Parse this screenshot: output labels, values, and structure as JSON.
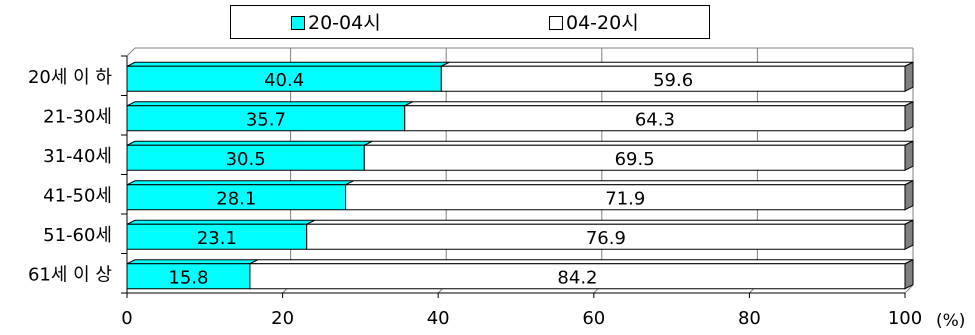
{
  "chart_data": {
    "type": "bar",
    "orientation": "horizontal",
    "stacked": true,
    "percent_stacked": true,
    "categories": [
      "20세 이 하",
      "21-30세",
      "31-40세",
      "41-50세",
      "51-60세",
      "61세 이 상"
    ],
    "series": [
      {
        "name": "20-04시",
        "values": [
          40.4,
          35.7,
          30.5,
          28.1,
          23.1,
          15.8
        ],
        "labels": [
          "40.4",
          "35.7",
          "30.5",
          "28.1",
          "23.1",
          "15.8"
        ]
      },
      {
        "name": "04-20시",
        "values": [
          59.6,
          64.3,
          69.5,
          71.9,
          76.9,
          84.2
        ],
        "labels": [
          "59.6",
          "64.3",
          "69.5",
          "71.9",
          "76.9",
          "84.2"
        ]
      }
    ],
    "xlim": [
      0,
      100
    ],
    "xticks": [
      "0",
      "20",
      "40",
      "60",
      "80",
      "100"
    ],
    "x_unit": "(%)",
    "legend_position": "top",
    "grid": true,
    "colors": {
      "series0": "#00FFFF",
      "series1": "#FFFFFF",
      "depth": "#808080",
      "grid": "#808080"
    }
  }
}
